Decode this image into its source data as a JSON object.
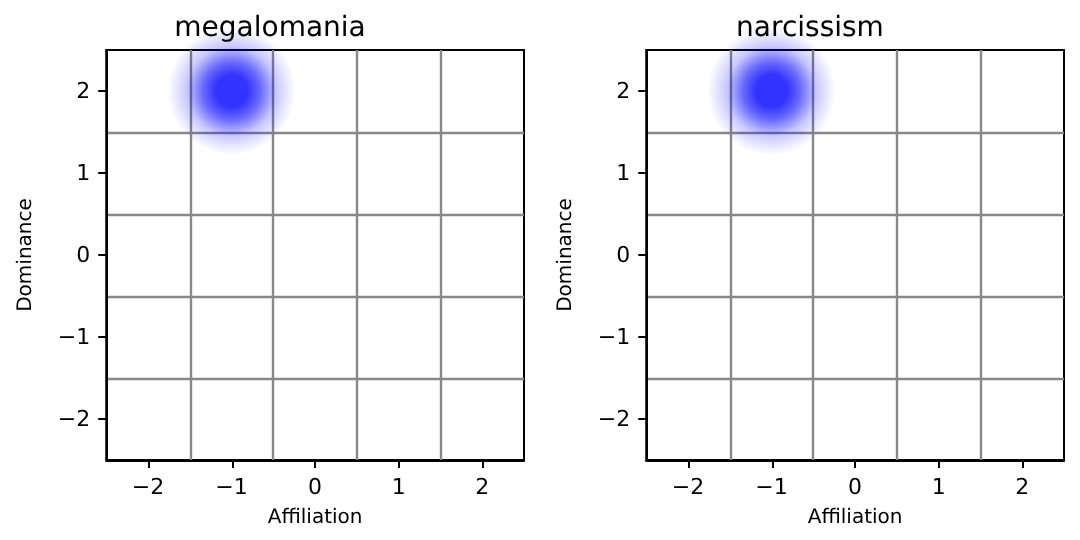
{
  "chart_data": [
    {
      "type": "scatter",
      "title": "megalomania",
      "xlabel": "Affiliation",
      "ylabel": "Dominance",
      "x": [
        -1
      ],
      "series": [
        {
          "color": "#0000ff",
          "values": [
            2
          ]
        }
      ],
      "xlim": [
        -2.5,
        2.5
      ],
      "ylim": [
        -2.5,
        2.5
      ],
      "xticks": [
        -2,
        {
          "value": -1.5,
          "label": null
        },
        -1,
        {
          "value": -0.5,
          "label": null
        },
        0,
        {
          "value": 0.5,
          "label": null
        },
        1,
        {
          "value": 1.5,
          "label": null
        },
        2
      ],
      "yticks": [
        -2,
        {
          "value": -1.5,
          "label": null
        },
        -1,
        {
          "value": -0.5,
          "label": null
        },
        0,
        {
          "value": 0.5,
          "label": null
        },
        1,
        {
          "value": 1.5,
          "label": null
        },
        2
      ],
      "grid": true,
      "marker": "circle"
    },
    {
      "type": "scatter",
      "title": "narcissism",
      "xlabel": "Affiliation",
      "ylabel": "Dominance",
      "x": [
        -1
      ],
      "series": [
        {
          "color": "#0000ff",
          "values": [
            2
          ]
        }
      ],
      "xlim": [
        -2.5,
        2.5
      ],
      "ylim": [
        -2.5,
        2.5
      ],
      "xticks": [
        -2,
        {
          "value": -1.5,
          "label": null
        },
        -1,
        {
          "value": -0.5,
          "label": null
        },
        0,
        {
          "value": 0.5,
          "label": null
        },
        1,
        {
          "value": 1.5,
          "label": null
        },
        2
      ],
      "yticks": [
        -2,
        {
          "value": -1.5,
          "label": null
        },
        -1,
        {
          "value": -0.5,
          "label": null
        },
        0,
        {
          "value": 0.5,
          "label": null
        },
        1,
        {
          "value": 1.5,
          "label": null
        },
        2
      ],
      "grid": true,
      "marker": "circle"
    }
  ]
}
